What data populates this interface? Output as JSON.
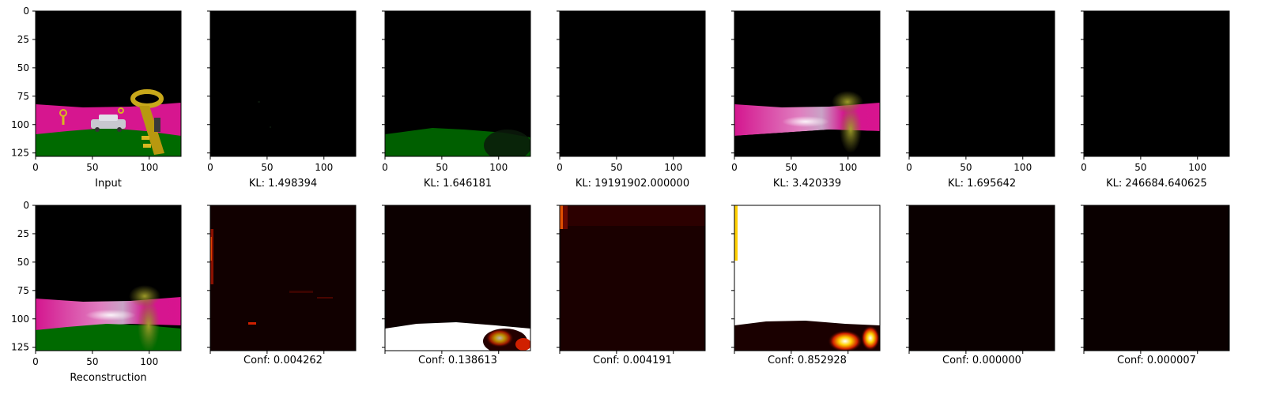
{
  "chart_data": {
    "type": "image-grid",
    "layout": "2 rows x 7 columns of image panels",
    "top_row": {
      "panels": [
        {
          "caption": "Input",
          "content": "rendered scene: black sky, magenta band, green ground, gold keys and silver car"
        },
        {
          "caption": "KL: 1.498394",
          "content": "near-black image"
        },
        {
          "caption": "KL: 1.646181",
          "content": "black with green ground at bottom"
        },
        {
          "caption": "KL: 19191902.000000",
          "content": "black image"
        },
        {
          "caption": "KL: 3.420339",
          "content": "blurred magenta band with key shape"
        },
        {
          "caption": "KL: 1.695642",
          "content": "black image"
        },
        {
          "caption": "KL: 246684.640625",
          "content": "black image"
        }
      ]
    },
    "bottom_row": {
      "panels": [
        {
          "caption": "Reconstruction",
          "content": "blurred reconstruction of input scene"
        },
        {
          "caption": "Conf: 0.004262",
          "content": "dark heatmap, faint red speckles"
        },
        {
          "caption": "Conf: 0.138613",
          "content": "dark heatmap, white band along bottom"
        },
        {
          "caption": "Conf: 0.004191",
          "content": "dark red heatmap"
        },
        {
          "caption": "Conf: 0.852928",
          "content": "mostly white heatmap, dark band at bottom"
        },
        {
          "caption": "Conf: 0.000000",
          "content": "black heatmap"
        },
        {
          "caption": "Conf: 0.000007",
          "content": "black heatmap"
        }
      ]
    },
    "x_ticks": [
      "0",
      "50",
      "100"
    ],
    "y_ticks": [
      "0",
      "25",
      "50",
      "75",
      "100",
      "125"
    ],
    "x_range": [
      0,
      128
    ],
    "y_range": [
      128,
      0
    ],
    "tick_labels_shown": "first column shows y tick labels; top row and first bottom panel show x tick labels",
    "colormap": "hot"
  }
}
